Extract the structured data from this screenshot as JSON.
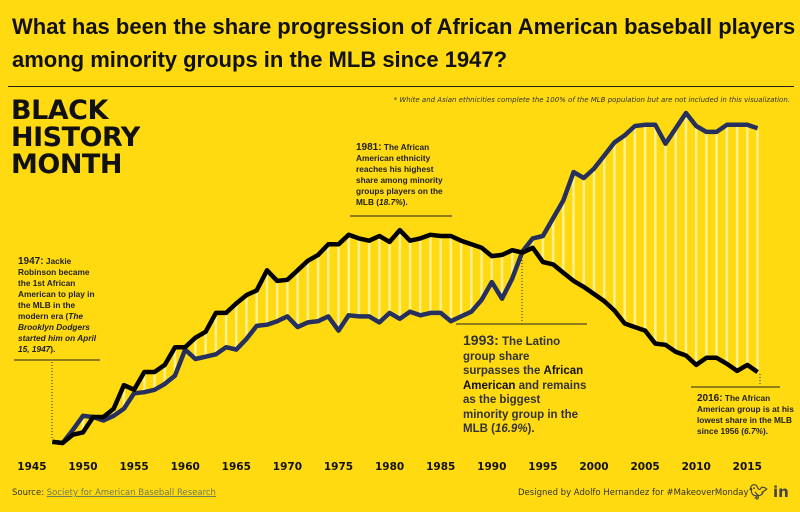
{
  "title": "What has been the share progression of African American baseball players among minority groups in the MLB since 1947?",
  "note": "* White and Asian ethnicities complete the 100% of the MLB population but are not included in this visualization.",
  "headline": [
    "BLACK",
    "HISTORY",
    "MONTH"
  ],
  "annotations": {
    "a1947": {
      "year": "1947:",
      "text1": "Jackie Robinson became the 1st African American to play in the MLB in the modern era (",
      "italic": "The Brooklyn Dodgers started him on April 15, 1947",
      "text2": ")."
    },
    "a1981": {
      "year": "1981:",
      "text1": "The African American ethnicity reaches his highest share among minority groups players on the MLB (",
      "italic": "18.7%",
      "text2": ")."
    },
    "a1993": {
      "year": "1993:",
      "text1": "The Latino group share surpasses the ",
      "bold": "African American",
      "text2": " and remains as the biggest minority group in the MLB (",
      "italic": "16.9%",
      "text3": ")."
    },
    "a2016": {
      "year": "2016:",
      "text1": "The African American group is at his lowest share in the MLB since 1956 (",
      "italic": "6.7%",
      "text2": ")."
    }
  },
  "footer": {
    "source_label": "Source: ",
    "source_link": "Society for American Baseball Research",
    "designer": "Designed by Adolfo Hernandez for #MakeoverMonday",
    "icons": [
      "twitter-icon",
      "linkedin-icon"
    ]
  },
  "colors": {
    "background": "#FFDA10",
    "african_american": "#000000",
    "latino": "#26305E",
    "stripes": "#FFF3A8"
  },
  "chart_data": {
    "type": "line",
    "xlabel": "",
    "ylabel": "",
    "xlim": [
      1945,
      2016
    ],
    "ylim": [
      0,
      29
    ],
    "y_axis_shown": false,
    "grid": false,
    "x_ticks": [
      "1945",
      "1950",
      "1955",
      "1960",
      "1965",
      "1970",
      "1975",
      "1980",
      "1985",
      "1990",
      "1995",
      "2000",
      "2005",
      "2010",
      "2015"
    ],
    "x": [
      1947,
      1948,
      1949,
      1950,
      1951,
      1952,
      1953,
      1954,
      1955,
      1956,
      1957,
      1958,
      1959,
      1960,
      1961,
      1962,
      1963,
      1964,
      1965,
      1966,
      1967,
      1968,
      1969,
      1970,
      1971,
      1972,
      1973,
      1974,
      1975,
      1976,
      1977,
      1978,
      1979,
      1980,
      1981,
      1982,
      1983,
      1984,
      1985,
      1986,
      1987,
      1988,
      1989,
      1990,
      1991,
      1992,
      1993,
      1994,
      1995,
      1996,
      1997,
      1998,
      1999,
      2000,
      2001,
      2002,
      2003,
      2004,
      2005,
      2006,
      2007,
      2008,
      2009,
      2010,
      2011,
      2012,
      2013,
      2014,
      2015,
      2016
    ],
    "series": [
      {
        "key": "african_american",
        "values": [
          0.8,
          0.7,
          1.4,
          1.6,
          2.9,
          2.9,
          3.6,
          5.6,
          5.2,
          6.7,
          6.7,
          7.3,
          8.8,
          8.8,
          9.6,
          10.1,
          11.7,
          11.7,
          12.5,
          13.2,
          13.6,
          15.3,
          14.4,
          14.5,
          15.3,
          16.1,
          16.6,
          17.5,
          17.5,
          18.3,
          18.0,
          17.8,
          18.2,
          17.7,
          18.7,
          17.8,
          18.0,
          18.3,
          18.2,
          18.2,
          17.8,
          17.5,
          17.2,
          16.5,
          16.6,
          17.0,
          16.8,
          17.2,
          16.0,
          15.8,
          15.1,
          14.4,
          13.9,
          13.3,
          12.7,
          11.9,
          10.8,
          10.5,
          10.2,
          9.1,
          9.0,
          8.4,
          8.1,
          7.3,
          7.9,
          7.9,
          7.4,
          6.8,
          7.3,
          6.7
        ]
      },
      {
        "key": "latino",
        "values": [
          0.8,
          0.7,
          1.8,
          3.0,
          2.9,
          2.6,
          3.0,
          3.6,
          4.9,
          5.0,
          5.2,
          5.7,
          6.4,
          8.6,
          7.8,
          8.0,
          8.2,
          8.8,
          8.6,
          9.5,
          10.6,
          10.7,
          11.0,
          11.4,
          10.5,
          10.9,
          11.0,
          11.4,
          10.2,
          11.5,
          11.4,
          11.4,
          10.9,
          11.7,
          11.2,
          11.8,
          11.5,
          11.7,
          11.7,
          11.0,
          11.4,
          11.8,
          12.8,
          14.3,
          12.9,
          14.6,
          16.9,
          18.0,
          18.2,
          19.7,
          21.2,
          23.6,
          23.1,
          23.9,
          25.0,
          26.1,
          26.7,
          27.5,
          27.6,
          27.6,
          26.0,
          27.3,
          28.6,
          27.5,
          27.0,
          27.0,
          27.6,
          27.6,
          27.6,
          27.3
        ]
      }
    ]
  }
}
